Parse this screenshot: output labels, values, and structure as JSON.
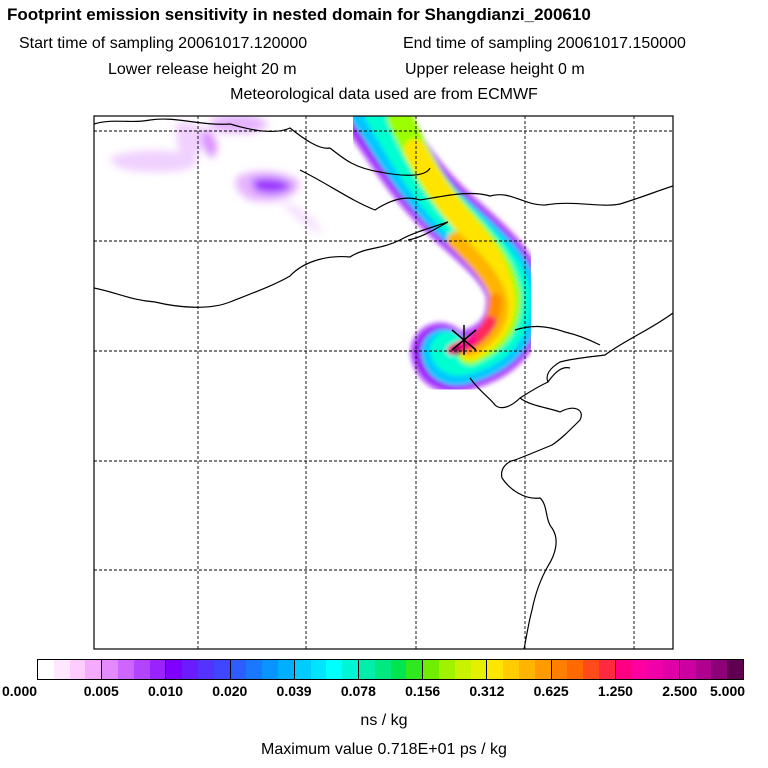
{
  "title": "Footprint emission sensitivity in nested domain for Shangdianzi_200610",
  "info": {
    "start_time": "Start time of sampling 20061017.120000",
    "end_time": "End time of sampling 20061017.150000",
    "lower_height": "Lower release height   20 m",
    "upper_height": "Upper release height    0 m",
    "met_data": "Meteorological data used are from ECMWF"
  },
  "colorbar": {
    "ticks": [
      "0.000",
      "0.005",
      "0.010",
      "0.020",
      "0.039",
      "0.078",
      "0.156",
      "0.312",
      "0.625",
      "1.250",
      "2.500",
      "5.000"
    ],
    "units": "ns / kg",
    "colors": [
      "#ffffff",
      "#ffe8ff",
      "#ffccff",
      "#f5aaff",
      "#e48aff",
      "#cc66ff",
      "#b244ff",
      "#9922ff",
      "#7f00ff",
      "#6a1cff",
      "#5533ff",
      "#4046ff",
      "#2e5cff",
      "#1a78ff",
      "#0a94ff",
      "#00b0ff",
      "#00ccff",
      "#00e4ff",
      "#00ffff",
      "#00f5d4",
      "#00eeaa",
      "#00e880",
      "#00e450",
      "#30e820",
      "#70ee00",
      "#a0f200",
      "#c8f200",
      "#e4f000",
      "#ffe600",
      "#ffcc00",
      "#ffb400",
      "#ff9a00",
      "#ff8000",
      "#ff6a00",
      "#ff4a1a",
      "#ff2a40",
      "#ff0080",
      "#ff00a0",
      "#f000a8",
      "#e000a8",
      "#cc00a0",
      "#b00090",
      "#8c0078",
      "#600050"
    ]
  },
  "max_value": "Maximum value  0.718E+01 ps / kg",
  "map": {
    "receptor_marker": "cross",
    "plume_colors": [
      "#e6b3ff",
      "#9b00ff",
      "#00c8ff",
      "#00ffd0",
      "#9cff00",
      "#ffe400",
      "#ff8c00",
      "#ff2a5a",
      "#ff0088",
      "#a0005a"
    ]
  }
}
